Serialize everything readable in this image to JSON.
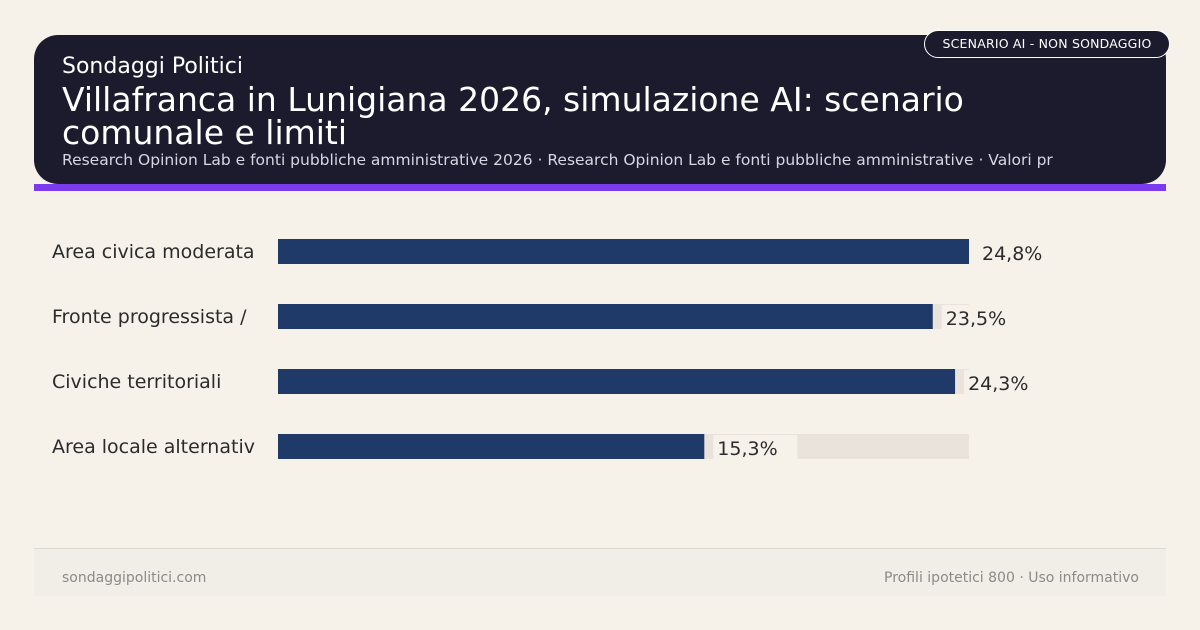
{
  "header": {
    "kicker": "Sondaggi Politici",
    "title": "Villafranca in Lunigiana 2026, simulazione AI: scenario comunale e limiti",
    "subtitle": "Research Opinion Lab e fonti pubbliche amministrative 2026 · Research Opinion Lab e fonti pubbliche amministrative · Valori pr",
    "badge": "SCENARIO AI - NON SONDAGGIO"
  },
  "colors": {
    "header_bg": "#1c1b2e",
    "accent": "#7c3aed",
    "bar": "#1f3a68",
    "track": "#e9e3db",
    "page_bg": "#f6f2ea"
  },
  "chart_data": {
    "type": "bar",
    "orientation": "horizontal",
    "categories": [
      "Area civica moderata",
      "Fronte progressista /",
      "Civiche territoriali",
      "Area locale alternativ"
    ],
    "values": [
      24.8,
      23.5,
      24.3,
      15.3
    ],
    "value_labels": [
      "24,8%",
      "23,5%",
      "24,3%",
      "15,3%"
    ],
    "xlim": [
      0,
      24.8
    ],
    "title": "",
    "xlabel": "",
    "ylabel": ""
  },
  "footer": {
    "left": "sondaggipolitici.com",
    "right": "Profili ipotetici 800 · Uso informativo"
  }
}
